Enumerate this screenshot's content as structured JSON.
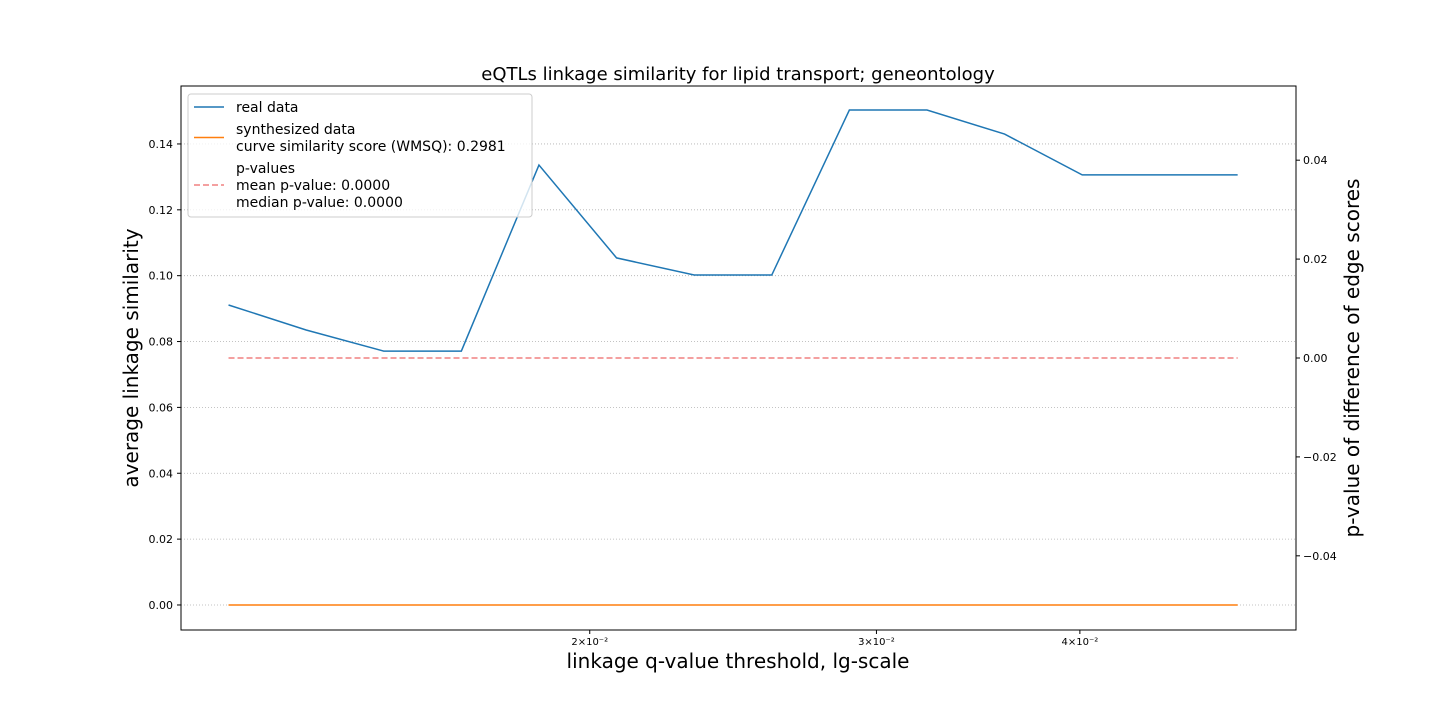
{
  "chart_data": {
    "type": "line",
    "title": "eQTLs linkage similarity for lipid transport; geneontology",
    "xlabel": "linkage q-value threshold, lg-scale",
    "ylabel": "average linkage similarity",
    "y2label": "p-value of difference of edge scores",
    "xscale": "log",
    "x": [
      0.012,
      0.013392,
      0.014945,
      0.016679,
      0.018614,
      0.020773,
      0.023183,
      0.025872,
      0.028873,
      0.032222,
      0.03596,
      0.040132,
      0.044787,
      0.05
    ],
    "xlim": [
      0.01122,
      0.0543
    ],
    "xticks": [
      {
        "value": 0.02,
        "label": "2×10⁻²"
      },
      {
        "value": 0.03,
        "label": "3×10⁻²"
      },
      {
        "value": 0.04,
        "label": "4×10⁻²"
      }
    ],
    "ylim": [
      -0.0076,
      0.1576
    ],
    "yticks": [
      {
        "value": 0,
        "label": "0.00"
      },
      {
        "value": 0.02,
        "label": "0.02"
      },
      {
        "value": 0.04,
        "label": "0.04"
      },
      {
        "value": 0.06,
        "label": "0.06"
      },
      {
        "value": 0.08,
        "label": "0.08"
      },
      {
        "value": 0.1,
        "label": "0.10"
      },
      {
        "value": 0.12,
        "label": "0.12"
      },
      {
        "value": 0.14,
        "label": "0.14"
      }
    ],
    "y2lim": [
      -0.055,
      0.055
    ],
    "y2ticks": [
      {
        "value": -0.04,
        "label": "−0.04"
      },
      {
        "value": -0.02,
        "label": "−0.02"
      },
      {
        "value": 0,
        "label": "0.00"
      },
      {
        "value": 0.02,
        "label": "0.02"
      },
      {
        "value": 0.04,
        "label": "0.04"
      }
    ],
    "grid": true,
    "legend": "upper left",
    "series": [
      {
        "name": "real data",
        "color": "#1f77b4",
        "values": [
          0.0911,
          0.0835,
          0.0771,
          0.0771,
          0.1336,
          0.1054,
          0.1002,
          0.1002,
          0.1503,
          0.1503,
          0.143,
          0.1306,
          0.1306,
          0.1306
        ]
      },
      {
        "name": "synthesized data",
        "note": [
          "curve similarity score (WMSQ): 0.2981"
        ],
        "color": "#ff7f0e",
        "values": [
          0,
          0,
          0,
          0,
          0,
          0,
          0,
          0,
          0,
          0,
          0,
          0,
          0,
          0
        ]
      },
      {
        "name": "p-values",
        "note": [
          "mean p-value: 0.0000",
          "median p-value: 0.0000"
        ],
        "color": "#f08080",
        "dashed": true,
        "axis": "y2",
        "values": [
          0,
          0,
          0,
          0,
          0,
          0,
          0,
          0,
          0,
          0,
          0,
          0,
          0,
          0
        ]
      }
    ]
  }
}
